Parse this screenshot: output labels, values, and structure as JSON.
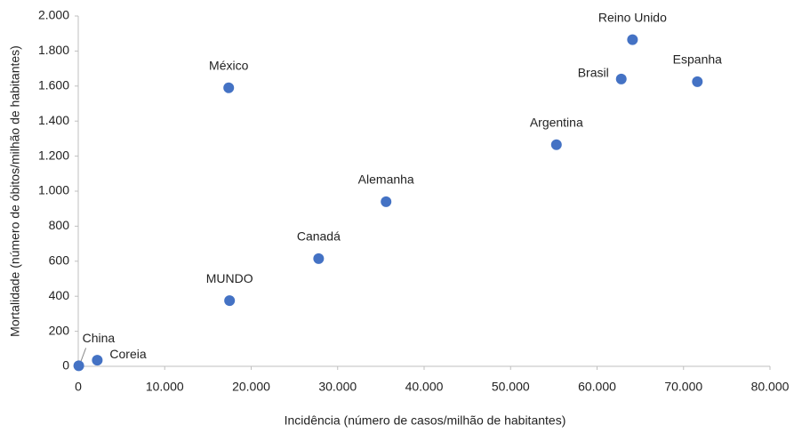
{
  "chart_data": {
    "type": "scatter",
    "x_label": "Incidência (número de casos/milhão de habitantes)",
    "y_label": "Mortalidade (número de óbitos/milhão de habitantes)",
    "series": [
      {
        "color": "#4472c4",
        "labels": [
          "China",
          "Coreia",
          "México",
          "MUNDO",
          "Canadá",
          "Alemanha",
          "Argentina",
          "Brasil",
          "Reino Unido",
          "Espanha"
        ],
        "x": [
          60,
          2200,
          17400,
          17500,
          27800,
          35600,
          55300,
          62800,
          64100,
          71600
        ],
        "values": [
          3,
          35,
          1590,
          375,
          615,
          940,
          1265,
          1640,
          1865,
          1625
        ]
      }
    ],
    "xlim": [
      0,
      80000
    ],
    "xticks": [
      0,
      {
        "value": 10000,
        "label": "10.000"
      },
      {
        "value": 20000,
        "label": "20.000"
      },
      {
        "value": 30000,
        "label": "30.000"
      },
      {
        "value": 40000,
        "label": "40.000"
      },
      {
        "value": 50000,
        "label": "50.000"
      },
      {
        "value": 60000,
        "label": "60.000"
      },
      {
        "value": 70000,
        "label": "70.000"
      },
      {
        "value": 80000,
        "label": "80.000"
      }
    ],
    "ylim": [
      0,
      2000
    ],
    "yticks": [
      0,
      200,
      400,
      600,
      800,
      {
        "value": 1000,
        "label": "1.000"
      },
      {
        "value": 1200,
        "label": "1.200"
      },
      {
        "value": 1400,
        "label": "1.400"
      },
      {
        "value": 1600,
        "label": "1.600"
      },
      {
        "value": 1800,
        "label": "1.800"
      },
      {
        "value": 2000,
        "label": "2.000"
      }
    ],
    "grid": false
  }
}
